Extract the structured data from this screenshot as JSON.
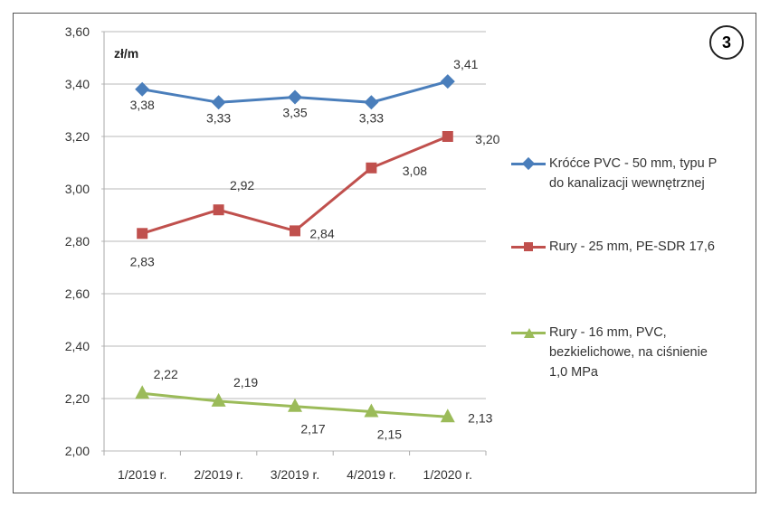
{
  "badge": "3",
  "chart_data": {
    "type": "line",
    "ylabel": "zł/m",
    "ylim": [
      2.0,
      3.6
    ],
    "yticks": [
      "2,00",
      "2,20",
      "2,40",
      "2,60",
      "2,80",
      "3,00",
      "3,20",
      "3,40",
      "3,60"
    ],
    "categories": [
      "1/2019 r.",
      "2/2019 r.",
      "3/2019 r.",
      "4/2019 r.",
      "1/2020 r."
    ],
    "grid": true,
    "legend_position": "right",
    "series": [
      {
        "name": "Króćce PVC - 50 mm, typu P\ndo kanalizacji wewnętrznej",
        "color": "#4a7ebb",
        "marker": "diamond",
        "values": [
          3.38,
          3.33,
          3.35,
          3.33,
          3.41
        ],
        "labels": [
          "3,38",
          "3,33",
          "3,35",
          "3,33",
          "3,41"
        ]
      },
      {
        "name": "Rury - 25 mm, PE-SDR 17,6",
        "color": "#c0504d",
        "marker": "square",
        "values": [
          2.83,
          2.92,
          2.84,
          3.08,
          3.2
        ],
        "labels": [
          "2,83",
          "2,92",
          "2,84",
          "3,08",
          "3,20"
        ]
      },
      {
        "name": "Rury - 16 mm, PVC,\nbezkielichowe, na ciśnienie\n1,0 MPa",
        "color": "#9bbb59",
        "marker": "triangle",
        "values": [
          2.22,
          2.19,
          2.17,
          2.15,
          2.13
        ],
        "labels": [
          "2,22",
          "2,19",
          "2,17",
          "2,15",
          "2,13"
        ]
      }
    ]
  }
}
